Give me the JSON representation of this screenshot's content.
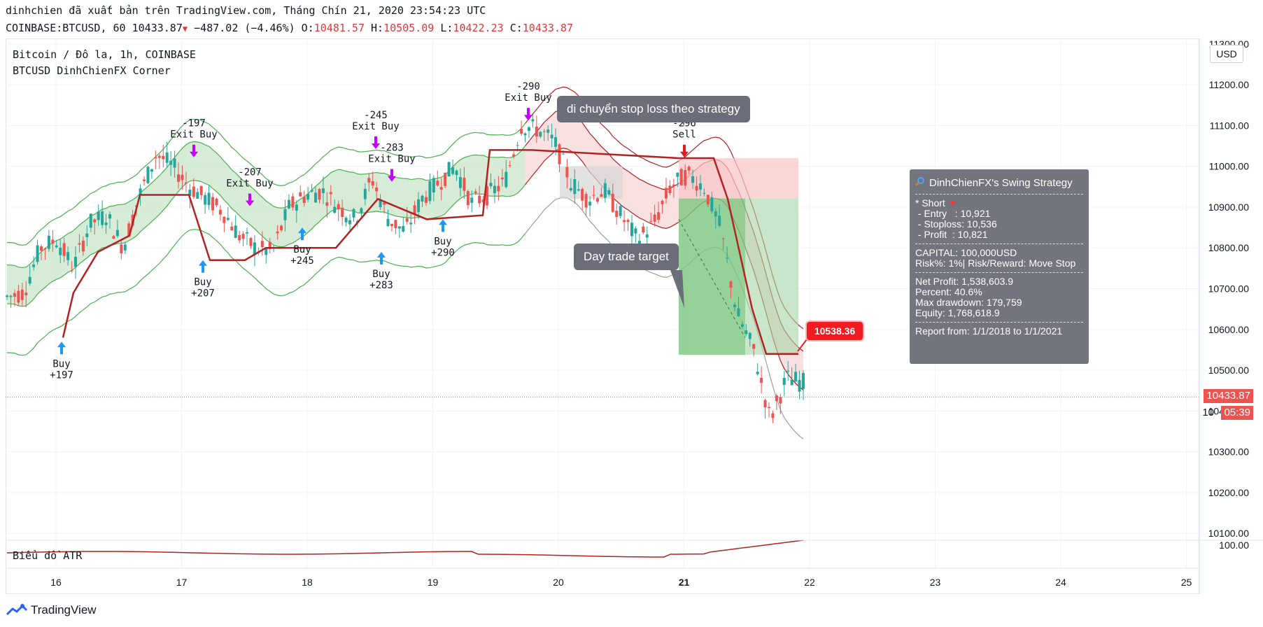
{
  "header": {
    "attribution": "dinhchien đã xuất bản trên TradingView.com, Tháng Chín 21, 2020 23:54:23 UTC",
    "symbol": "COINBASE:BTCUSD, 60",
    "last": "10433.87",
    "change": "−487.02 (−4.46%)",
    "o_label": "O:",
    "o": "10481.57",
    "h_label": "H:",
    "h": "10505.09",
    "l_label": "L:",
    "l": "10422.23",
    "c_label": "C:",
    "c": "10433.87"
  },
  "legend": {
    "line1": "Bitcoin / Đô la, 1h, COINBASE",
    "line2": "BTCUSD DinhChienFX Corner"
  },
  "atr_label": "Biểu đồ ATR",
  "atr_scale_label": "100.00",
  "currency": "USD",
  "callouts": {
    "stop": "di chuyển stop loss theo strategy",
    "target": "Day trade target"
  },
  "target_flag": "10538.36",
  "price_marker": "10433.87",
  "countdown_prefix": "10",
  "countdown": "05:39",
  "panel": {
    "title": "DinhChienFX's Swing Strategy",
    "short": "* Short",
    "entry": " - Entry   : 10,921",
    "stoploss": " - Stoploss: 10,536",
    "profit": " - Profit  : 10,821",
    "capital": "CAPITAL: 100,000USD",
    "risk": "Risk%: 1%| Risk/Reward: Move Stop",
    "net": "Net Profit: 1,538,603.9",
    "percent": "Percent: 40.6%",
    "drawdown": "Max drawdown: 179,759",
    "equity": "Equity: 1,768,618.9",
    "report": "Report from: 1/1/2018 to 1/1/2021"
  },
  "footer": {
    "brand": "TradingView"
  },
  "colors": {
    "up": "#26a69a",
    "down": "#ef5350",
    "band": "#4caf50",
    "stopline": "#b22222",
    "arrow_buy": "#2196f3",
    "arrow_exit": "#c500ff"
  },
  "chart_data": {
    "type": "candlestick",
    "x_tick_labels": [
      "16",
      "17",
      "18",
      "19",
      "20",
      "21",
      "22",
      "23",
      "24",
      "25"
    ],
    "y_tick_labels": [
      "11300.00",
      "11200.00",
      "11100.00",
      "11000.00",
      "10900.00",
      "10800.00",
      "10700.00",
      "10600.00",
      "10500.00",
      "10400.00",
      "10300.00",
      "10200.00",
      "10100.00"
    ],
    "ylim": [
      10090,
      11310
    ],
    "last_price": 10433.87,
    "target": 10538.36,
    "session_close": [
      10680,
      10690,
      10800,
      10820,
      10750,
      10860,
      10880,
      10800,
      10930,
      11030,
      11000,
      10950,
      10920,
      10890,
      10830,
      10800,
      10790,
      10900,
      10930,
      10940,
      10900,
      10870,
      10970,
      10870,
      10840,
      10920,
      10960,
      11000,
      10910,
      10930,
      10960,
      11100,
      11090,
      11060,
      10960,
      10920,
      10940,
      10880,
      10820,
      10860,
      10950,
      10980,
      10950,
      10850,
      10640,
      10550,
      10380,
      10480,
      10470
    ],
    "signals": [
      {
        "label": "Buy",
        "value": "+197"
      },
      {
        "label": "Exit Buy",
        "value": "-197"
      },
      {
        "label": "Buy",
        "value": "+207"
      },
      {
        "label": "Exit Buy",
        "value": "-207"
      },
      {
        "label": "Buy",
        "value": "+245"
      },
      {
        "label": "Exit Buy",
        "value": "-245"
      },
      {
        "label": "Buy",
        "value": "+283"
      },
      {
        "label": "Exit Buy",
        "value": "-283"
      },
      {
        "label": "Buy",
        "value": "+290"
      },
      {
        "label": "Exit Buy",
        "value": "-290"
      },
      {
        "label": "Sell",
        "value": "-296"
      }
    ]
  }
}
